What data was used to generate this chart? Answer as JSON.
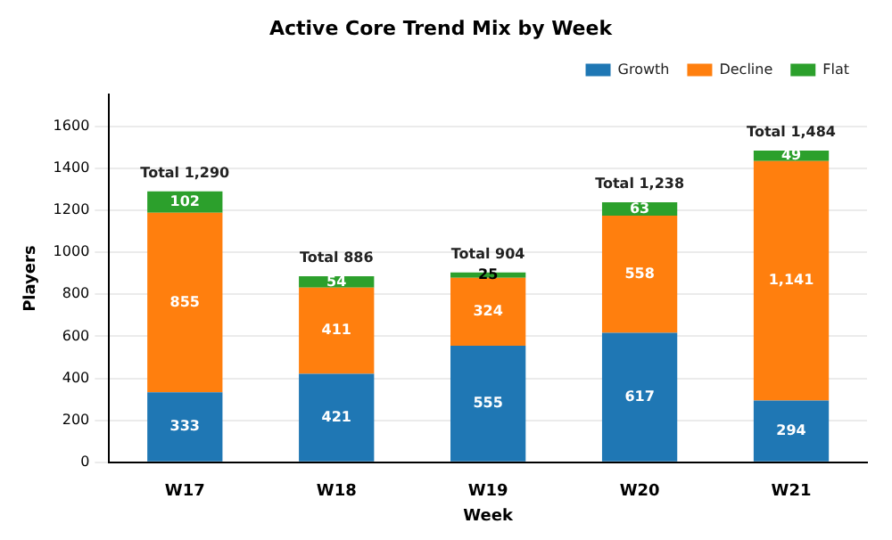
{
  "chart_data": {
    "type": "bar",
    "title": "Active Core Trend Mix by Week",
    "xlabel": "Week",
    "ylabel": "Players",
    "categories": [
      "W17",
      "W18",
      "W19",
      "W20",
      "W21"
    ],
    "stacked": true,
    "series": [
      {
        "name": "Growth",
        "color": "#1f77b4",
        "values": [
          333,
          421,
          555,
          617,
          294
        ],
        "value_labels": [
          "333",
          "421",
          "555",
          "617",
          "294"
        ]
      },
      {
        "name": "Decline",
        "color": "#ff7f0e",
        "values": [
          855,
          411,
          324,
          558,
          1141
        ],
        "value_labels": [
          "855",
          "411",
          "324",
          "558",
          "1,141"
        ]
      },
      {
        "name": "Flat",
        "color": "#2ca02c",
        "values": [
          102,
          54,
          25,
          63,
          49
        ],
        "value_labels": [
          "102",
          "54",
          "25",
          "63",
          "49"
        ]
      }
    ],
    "totals": [
      "Total 1,290",
      "Total 886",
      "Total 904",
      "Total 1,238",
      "Total 1,484"
    ],
    "ylim": [
      0,
      1750
    ],
    "yticks": [
      0,
      200,
      400,
      600,
      800,
      1000,
      1200,
      1400,
      1600
    ],
    "grid": "y",
    "legend": "top right"
  }
}
